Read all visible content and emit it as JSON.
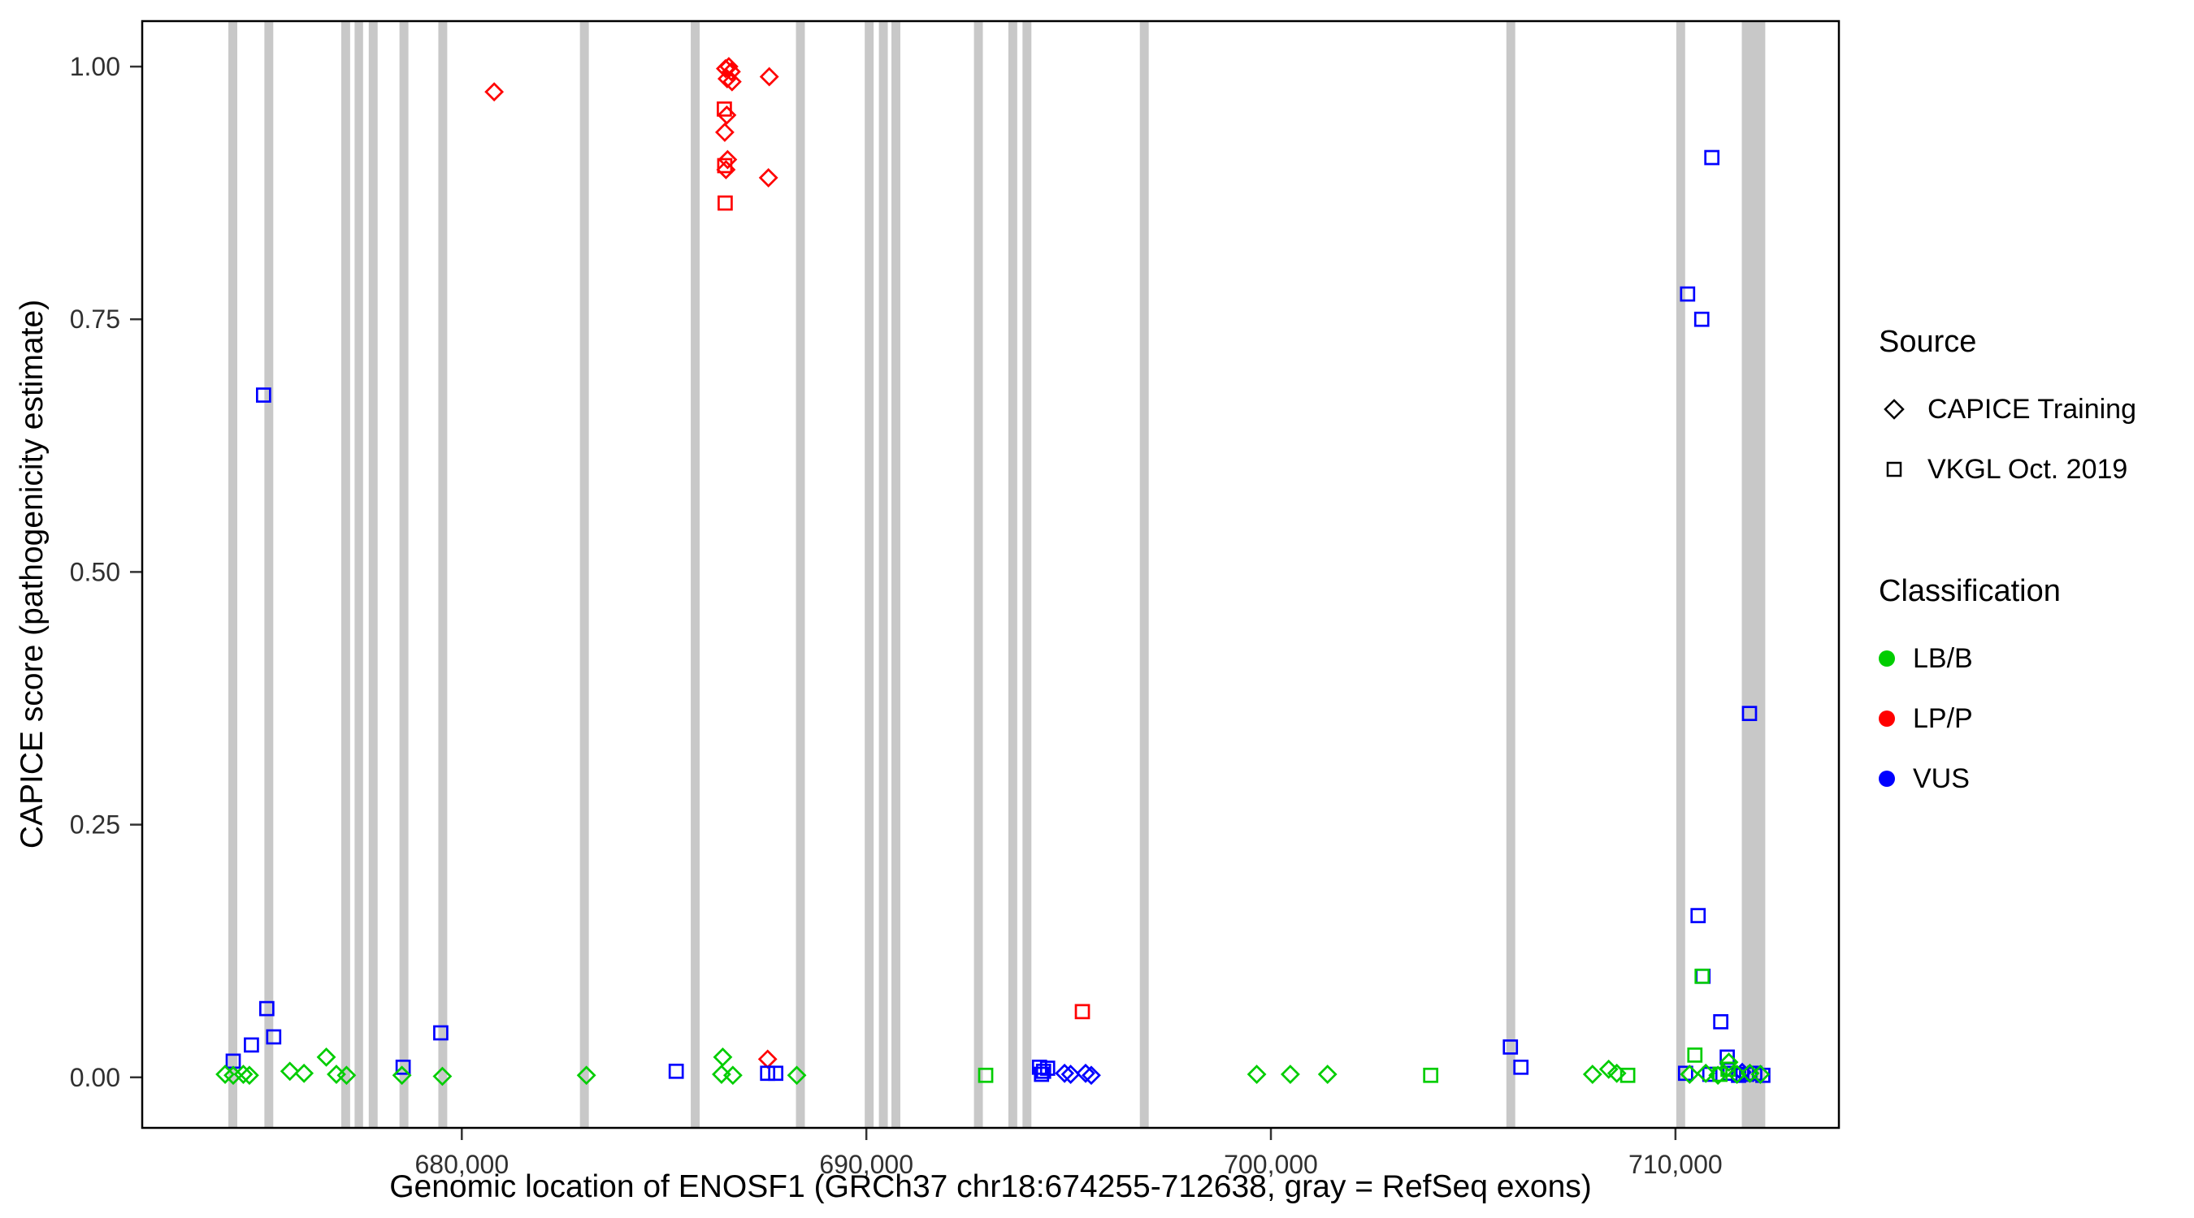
{
  "figure": {
    "ylabel": "CAPICE score (pathogenicity estimate)",
    "xlabel": "Genomic location of ENOSF1 (GRCh37 chr18:674255-712638, gray = RefSeq exons)"
  },
  "legend": {
    "source_title": "Source",
    "source_items": [
      {
        "label": "CAPICE Training",
        "shape": "diamond"
      },
      {
        "label": "VKGL Oct. 2019",
        "shape": "square"
      }
    ],
    "classification_title": "Classification",
    "classification_items": [
      {
        "label": "LB/B",
        "color": "#00CD00"
      },
      {
        "label": "LP/P",
        "color": "#FF0000"
      },
      {
        "label": "VUS",
        "color": "#0000FF"
      }
    ]
  },
  "chart_data": {
    "type": "scatter",
    "title": "",
    "xlabel": "Genomic location of ENOSF1 (GRCh37 chr18:674255-712638, gray = RefSeq exons)",
    "ylabel": "CAPICE score (pathogenicity estimate)",
    "grid": false,
    "legend_position": "right",
    "xlim": [
      672100,
      714040
    ],
    "ylim": [
      -0.05,
      1.045
    ],
    "x_ticks": [
      {
        "value": 680000,
        "label": "680,000"
      },
      {
        "value": 690000,
        "label": "690,000"
      },
      {
        "value": 700000,
        "label": "700,000"
      },
      {
        "value": 710000,
        "label": "710,000"
      }
    ],
    "y_ticks": [
      {
        "value": 0.0,
        "label": "0.00"
      },
      {
        "value": 0.25,
        "label": "0.25"
      },
      {
        "value": 0.5,
        "label": "0.50"
      },
      {
        "value": 0.75,
        "label": "0.75"
      },
      {
        "value": 1.0,
        "label": "1.00"
      }
    ],
    "exon_color": "#C8C8C8",
    "exons": [
      [
        674230,
        674450
      ],
      [
        675120,
        675340
      ],
      [
        677020,
        677240
      ],
      [
        677350,
        677560
      ],
      [
        677700,
        677920
      ],
      [
        678460,
        678680
      ],
      [
        679420,
        679640
      ],
      [
        682920,
        683140
      ],
      [
        685660,
        685880
      ],
      [
        688260,
        688480
      ],
      [
        689960,
        690180
      ],
      [
        690310,
        690530
      ],
      [
        690620,
        690840
      ],
      [
        692660,
        692880
      ],
      [
        693510,
        693730
      ],
      [
        693860,
        694080
      ],
      [
        696760,
        696980
      ],
      [
        705820,
        706040
      ],
      [
        710020,
        710240
      ],
      [
        711640,
        712220
      ]
    ],
    "classification_colors": {
      "LB/B": "#00CD00",
      "LP/P": "#FF0000",
      "VUS": "#0000FF"
    },
    "shape_key": {
      "D": "CAPICE Training (diamond)",
      "S": "VKGL Oct. 2019 (square)"
    },
    "point_format": [
      "genomic_position",
      "capice_score",
      "shape",
      "classification"
    ],
    "points": [
      [
        680800,
        0.975,
        "D",
        "LP/P"
      ],
      [
        686520,
        0.998,
        "D",
        "LP/P"
      ],
      [
        686600,
        1.0,
        "D",
        "LP/P"
      ],
      [
        686660,
        0.995,
        "D",
        "LP/P"
      ],
      [
        686560,
        0.988,
        "D",
        "LP/P"
      ],
      [
        686680,
        0.985,
        "D",
        "LP/P"
      ],
      [
        687600,
        0.99,
        "D",
        "LP/P"
      ],
      [
        686550,
        0.952,
        "D",
        "LP/P"
      ],
      [
        686500,
        0.935,
        "D",
        "LP/P"
      ],
      [
        686570,
        0.908,
        "D",
        "LP/P"
      ],
      [
        686530,
        0.898,
        "D",
        "LP/P"
      ],
      [
        687580,
        0.89,
        "D",
        "LP/P"
      ],
      [
        687560,
        0.018,
        "D",
        "LP/P"
      ],
      [
        686490,
        0.958,
        "S",
        "LP/P"
      ],
      [
        686500,
        0.902,
        "S",
        "LP/P"
      ],
      [
        686510,
        0.865,
        "S",
        "LP/P"
      ],
      [
        695340,
        0.065,
        "S",
        "LP/P"
      ],
      [
        675100,
        0.675,
        "S",
        "VUS"
      ],
      [
        710900,
        0.91,
        "S",
        "VUS"
      ],
      [
        710300,
        0.775,
        "S",
        "VUS"
      ],
      [
        710650,
        0.75,
        "S",
        "VUS"
      ],
      [
        711830,
        0.36,
        "S",
        "VUS"
      ],
      [
        674350,
        0.016,
        "S",
        "VUS"
      ],
      [
        674800,
        0.032,
        "S",
        "VUS"
      ],
      [
        675180,
        0.068,
        "S",
        "VUS"
      ],
      [
        675350,
        0.04,
        "S",
        "VUS"
      ],
      [
        678550,
        0.01,
        "S",
        "VUS"
      ],
      [
        679480,
        0.044,
        "S",
        "VUS"
      ],
      [
        685300,
        0.006,
        "S",
        "VUS"
      ],
      [
        687560,
        0.004,
        "S",
        "VUS"
      ],
      [
        687760,
        0.004,
        "S",
        "VUS"
      ],
      [
        694280,
        0.01,
        "S",
        "VUS"
      ],
      [
        694380,
        0.006,
        "S",
        "VUS"
      ],
      [
        694480,
        0.009,
        "S",
        "VUS"
      ],
      [
        694330,
        0.003,
        "S",
        "VUS"
      ],
      [
        705920,
        0.03,
        "S",
        "VUS"
      ],
      [
        706180,
        0.01,
        "S",
        "VUS"
      ],
      [
        710560,
        0.16,
        "S",
        "VUS"
      ],
      [
        710680,
        0.1,
        "S",
        "VUS"
      ],
      [
        711120,
        0.055,
        "S",
        "VUS"
      ],
      [
        711280,
        0.02,
        "S",
        "VUS"
      ],
      [
        710250,
        0.004,
        "S",
        "VUS"
      ],
      [
        710850,
        0.003,
        "S",
        "VUS"
      ],
      [
        711350,
        0.004,
        "S",
        "VUS"
      ],
      [
        711560,
        0.002,
        "S",
        "VUS"
      ],
      [
        711760,
        0.003,
        "S",
        "VUS"
      ],
      [
        711960,
        0.004,
        "S",
        "VUS"
      ],
      [
        712160,
        0.002,
        "S",
        "VUS"
      ],
      [
        694900,
        0.004,
        "D",
        "VUS"
      ],
      [
        695050,
        0.003,
        "D",
        "VUS"
      ],
      [
        695420,
        0.004,
        "D",
        "VUS"
      ],
      [
        695560,
        0.002,
        "D",
        "VUS"
      ],
      [
        711650,
        0.005,
        "D",
        "VUS"
      ],
      [
        674150,
        0.003,
        "D",
        "LB/B"
      ],
      [
        674350,
        0.002,
        "D",
        "LB/B"
      ],
      [
        674600,
        0.003,
        "D",
        "LB/B"
      ],
      [
        674750,
        0.002,
        "D",
        "LB/B"
      ],
      [
        675750,
        0.006,
        "D",
        "LB/B"
      ],
      [
        676100,
        0.004,
        "D",
        "LB/B"
      ],
      [
        676650,
        0.02,
        "D",
        "LB/B"
      ],
      [
        676900,
        0.003,
        "D",
        "LB/B"
      ],
      [
        677150,
        0.002,
        "D",
        "LB/B"
      ],
      [
        678520,
        0.002,
        "D",
        "LB/B"
      ],
      [
        679520,
        0.001,
        "D",
        "LB/B"
      ],
      [
        683080,
        0.002,
        "D",
        "LB/B"
      ],
      [
        686450,
        0.02,
        "D",
        "LB/B"
      ],
      [
        686420,
        0.003,
        "D",
        "LB/B"
      ],
      [
        686700,
        0.002,
        "D",
        "LB/B"
      ],
      [
        688280,
        0.002,
        "D",
        "LB/B"
      ],
      [
        699650,
        0.003,
        "D",
        "LB/B"
      ],
      [
        700480,
        0.003,
        "D",
        "LB/B"
      ],
      [
        701400,
        0.003,
        "D",
        "LB/B"
      ],
      [
        707950,
        0.003,
        "D",
        "LB/B"
      ],
      [
        708350,
        0.008,
        "D",
        "LB/B"
      ],
      [
        708550,
        0.004,
        "D",
        "LB/B"
      ],
      [
        711320,
        0.015,
        "D",
        "LB/B"
      ],
      [
        710350,
        0.003,
        "D",
        "LB/B"
      ],
      [
        710750,
        0.004,
        "D",
        "LB/B"
      ],
      [
        711050,
        0.002,
        "D",
        "LB/B"
      ],
      [
        711520,
        0.003,
        "D",
        "LB/B"
      ],
      [
        711840,
        0.004,
        "D",
        "LB/B"
      ],
      [
        712100,
        0.003,
        "D",
        "LB/B"
      ],
      [
        692950,
        0.002,
        "S",
        "LB/B"
      ],
      [
        703950,
        0.002,
        "S",
        "LB/B"
      ],
      [
        708820,
        0.002,
        "S",
        "LB/B"
      ],
      [
        710480,
        0.022,
        "S",
        "LB/B"
      ],
      [
        710660,
        0.1,
        "S",
        "LB/B"
      ],
      [
        711100,
        0.003,
        "S",
        "LB/B"
      ],
      [
        711300,
        0.008,
        "S",
        "LB/B"
      ]
    ]
  }
}
